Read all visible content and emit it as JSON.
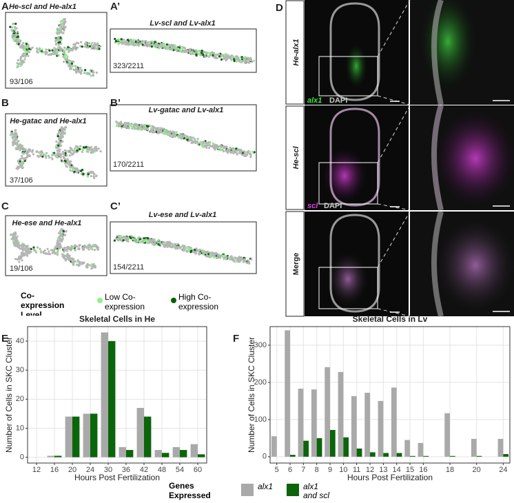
{
  "panels": {
    "A": {
      "letter": "A",
      "title": "He-scl and He-alx1",
      "count": "93/106"
    },
    "A2": {
      "letter": "A’",
      "title": "Lv-scl and Lv-alx1",
      "count": "323/2211"
    },
    "B": {
      "letter": "B",
      "title": "He-gatac and He-alx1",
      "count": "37/106"
    },
    "B2": {
      "letter": "B’",
      "title": "Lv-gatac and Lv-alx1",
      "count": "170/2211"
    },
    "C": {
      "letter": "C",
      "title": "He-ese and He-alx1",
      "count": "19/106"
    },
    "C2": {
      "letter": "C’",
      "title": "Lv-ese and Lv-alx1",
      "count": "154/2211"
    },
    "D": {
      "letter": "D",
      "rows": [
        "He-alx1",
        "He-scl",
        "Merge"
      ],
      "stain1": "alx1",
      "stain2": "scl",
      "dapi": "DAPI"
    },
    "E": {
      "letter": "E"
    },
    "F": {
      "letter": "F"
    }
  },
  "coexpression_legend": {
    "title": "Co-expression Level",
    "low": "Low Co-expression",
    "high": "High Co-expression"
  },
  "legend": {
    "title": "Genes Expressed"
  },
  "chart_data": [
    {
      "type": "bar",
      "title": "Skeletal Cells in He",
      "x_label": "Hours Post Fertilization",
      "y_label": "Number of Cells in SKC Cluster",
      "categories": [
        "12",
        "16",
        "20",
        "24",
        "30",
        "36",
        "42",
        "48",
        "54",
        "60"
      ],
      "series": [
        {
          "color": "#a9a9a9",
          "values": [
            null,
            0.5,
            14,
            15,
            43,
            3.5,
            17,
            2.5,
            3.5,
            4.5
          ]
        },
        {
          "color": "#0b650b",
          "values": [
            null,
            0.5,
            14,
            15,
            40,
            2.5,
            14,
            1.5,
            2.5,
            1
          ]
        }
      ],
      "ylim": [
        -2,
        45
      ],
      "yticks": [
        0,
        10,
        20,
        30,
        40
      ],
      "grid": true
    },
    {
      "type": "bar",
      "title": "Skeletal Cells in Lv",
      "x_label": "Hours Post Fertilization",
      "y_label": "Number of Cells in SKC Cluster",
      "categories": [
        "5",
        "6",
        "7",
        "8",
        "9",
        "10",
        "11",
        "12",
        "13",
        "14",
        "15",
        "16",
        null,
        "18",
        null,
        "20",
        null,
        "24"
      ],
      "series": [
        {
          "name": "alx1",
          "color": "#a9a9a9",
          "values": [
            55,
            340,
            183,
            181,
            241,
            228,
            163,
            172,
            150,
            186,
            45,
            37,
            null,
            117,
            null,
            48,
            null,
            48
          ]
        },
        {
          "name": "alx1 and scl",
          "color": "#0b650b",
          "values": [
            0,
            5,
            43,
            50,
            72,
            52,
            22,
            12,
            10,
            10,
            2,
            2,
            null,
            2,
            null,
            2,
            null,
            7
          ]
        }
      ],
      "ylim": [
        -17,
        350
      ],
      "yticks": [
        0,
        100,
        200,
        300
      ],
      "grid": true
    }
  ]
}
